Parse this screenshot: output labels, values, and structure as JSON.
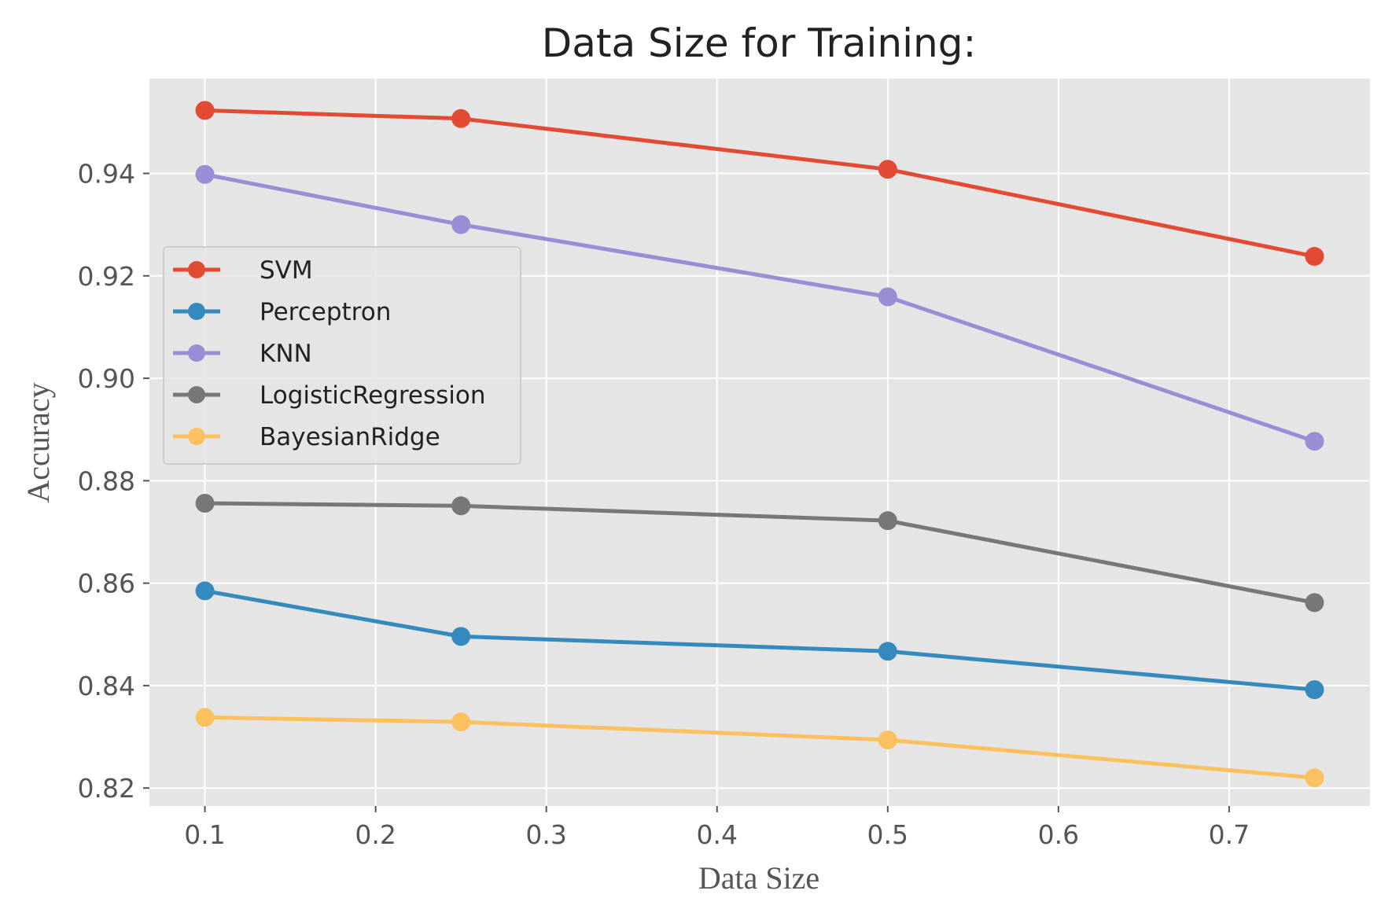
{
  "chart_data": {
    "type": "line",
    "title": "Data Size for Training:",
    "xlabel": "Data Size",
    "ylabel": "Accuracy",
    "x": [
      0.1,
      0.25,
      0.5,
      0.75
    ],
    "xlim": [
      0.0675,
      0.7825
    ],
    "ylim": [
      0.8165,
      0.9585
    ],
    "xticks": [
      0.1,
      0.2,
      0.3,
      0.4,
      0.5,
      0.6,
      0.7
    ],
    "xtick_labels": [
      "0.1",
      "0.2",
      "0.3",
      "0.4",
      "0.5",
      "0.6",
      "0.7"
    ],
    "yticks": [
      0.82,
      0.84,
      0.86,
      0.88,
      0.9,
      0.92,
      0.94
    ],
    "ytick_labels": [
      "0.82",
      "0.84",
      "0.86",
      "0.88",
      "0.90",
      "0.92",
      "0.94"
    ],
    "grid": true,
    "legend_position": "center-left",
    "series": [
      {
        "name": "SVM",
        "color": "#E24A33",
        "values": [
          0.9523,
          0.9507,
          0.9408,
          0.9238
        ]
      },
      {
        "name": "Perceptron",
        "color": "#348ABD",
        "values": [
          0.8585,
          0.8496,
          0.8467,
          0.8392
        ]
      },
      {
        "name": "KNN",
        "color": "#988ED5",
        "values": [
          0.9398,
          0.93,
          0.9159,
          0.8877
        ]
      },
      {
        "name": "LogisticRegression",
        "color": "#777777",
        "values": [
          0.8756,
          0.8751,
          0.8722,
          0.8562
        ]
      },
      {
        "name": "BayesianRidge",
        "color": "#FBC15E",
        "values": [
          0.8338,
          0.8329,
          0.8294,
          0.822
        ]
      }
    ],
    "background_color": "#E5E5E5",
    "grid_color": "#FFFFFF"
  }
}
